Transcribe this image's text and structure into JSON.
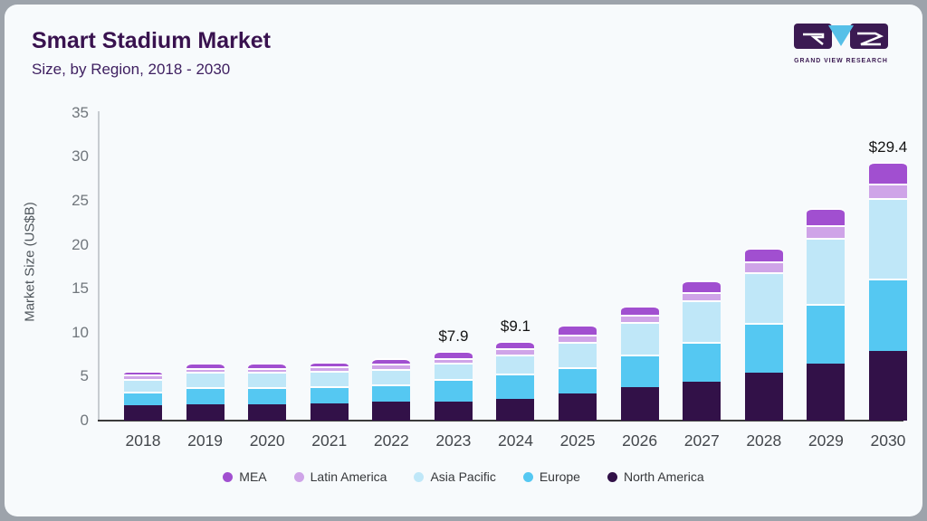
{
  "card": {
    "title": "Smart Stadium Market",
    "subtitle": "Size, by Region, 2018 - 2030"
  },
  "logo": {
    "caption": "GRAND VIEW RESEARCH",
    "block_color": "#3b1a52",
    "triangle_color": "#56c0e8"
  },
  "chart_data": {
    "type": "bar",
    "stacked": true,
    "title": "Smart Stadium Market",
    "subtitle": "Size, by Region, 2018 - 2030",
    "ylabel": "Market Size (US$B)",
    "ylim": [
      0,
      35
    ],
    "yticks": [
      0,
      5,
      10,
      15,
      20,
      25,
      30,
      35
    ],
    "grid": false,
    "legend_position": "bottom",
    "categories": [
      "2018",
      "2019",
      "2020",
      "2021",
      "2022",
      "2023",
      "2024",
      "2025",
      "2026",
      "2027",
      "2028",
      "2029",
      "2030"
    ],
    "series": [
      {
        "name": "North America",
        "color": "#321148",
        "values": [
          1.7,
          1.9,
          1.9,
          2.0,
          2.2,
          2.2,
          2.5,
          3.1,
          3.8,
          4.4,
          5.5,
          6.5,
          7.9
        ]
      },
      {
        "name": "Europe",
        "color": "#55c8f2",
        "values": [
          1.6,
          1.9,
          1.9,
          1.9,
          1.9,
          2.5,
          2.8,
          3.0,
          3.7,
          4.5,
          5.6,
          6.8,
          8.3
        ]
      },
      {
        "name": "Asia Pacific",
        "color": "#bfe7f8",
        "values": [
          1.4,
          1.8,
          1.8,
          1.8,
          1.8,
          1.9,
          2.2,
          2.8,
          3.7,
          4.8,
          5.8,
          7.5,
          9.1
        ]
      },
      {
        "name": "Latin America",
        "color": "#cfa4e8",
        "values": [
          0.5,
          0.4,
          0.4,
          0.5,
          0.6,
          0.5,
          0.7,
          0.9,
          0.8,
          0.9,
          1.2,
          1.4,
          1.7
        ]
      },
      {
        "name": "MEA",
        "color": "#a14fd0",
        "values": [
          0.5,
          0.6,
          0.6,
          0.5,
          0.6,
          0.8,
          0.9,
          1.1,
          1.1,
          1.3,
          1.5,
          2.0,
          2.4
        ]
      }
    ],
    "totals": [
      5.7,
      6.6,
      6.6,
      6.7,
      7.1,
      7.9,
      9.1,
      10.9,
      13.1,
      15.9,
      19.6,
      24.2,
      29.4
    ],
    "annotations": {
      "2023": "$7.9",
      "2024": "$9.1",
      "2030": "$29.4"
    },
    "legend_order": [
      "MEA",
      "Latin America",
      "Asia Pacific",
      "Europe",
      "North America"
    ]
  }
}
